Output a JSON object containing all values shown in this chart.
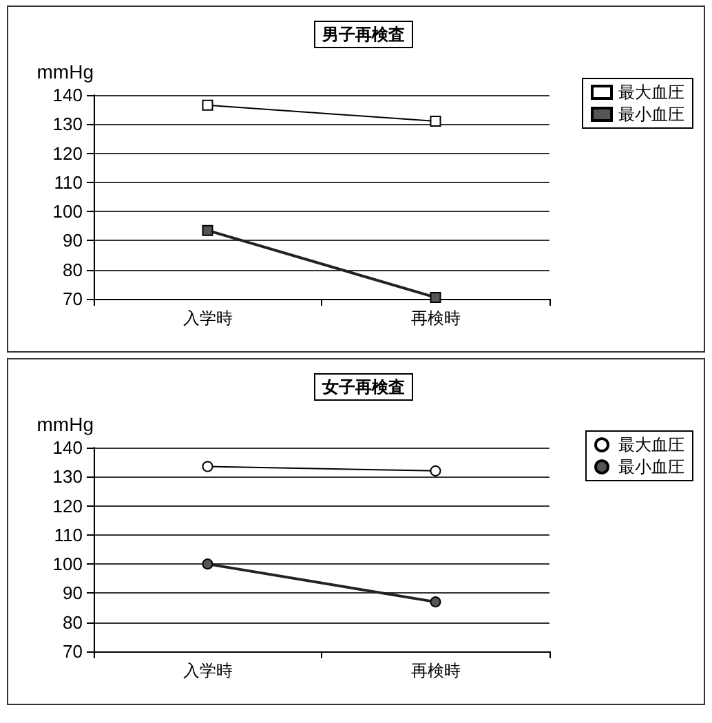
{
  "chart_data": [
    {
      "type": "line",
      "title": "男子再検査",
      "ylabel": "mmHg",
      "categories": [
        "入学時",
        "再検時"
      ],
      "series": [
        {
          "name": "最大血圧",
          "color": "#ffffff",
          "values": [
            136.5,
            131
          ]
        },
        {
          "name": "最小血圧",
          "color": "#555555",
          "values": [
            93.5,
            70.5
          ]
        }
      ],
      "ylim": [
        70,
        140
      ],
      "yticks": [
        70,
        80,
        90,
        100,
        110,
        120,
        130,
        140
      ],
      "grid": "y",
      "legend": "right",
      "marker": "square"
    },
    {
      "type": "line",
      "title": "女子再検査",
      "ylabel": "mmHg",
      "categories": [
        "入学時",
        "再検時"
      ],
      "series": [
        {
          "name": "最大血圧",
          "color": "#ffffff",
          "values": [
            133.5,
            132
          ]
        },
        {
          "name": "最小血圧",
          "color": "#555555",
          "values": [
            100,
            87
          ]
        }
      ],
      "ylim": [
        70,
        140
      ],
      "yticks": [
        70,
        80,
        90,
        100,
        110,
        120,
        130,
        140
      ],
      "grid": "y",
      "legend": "right",
      "marker": "circle"
    }
  ]
}
